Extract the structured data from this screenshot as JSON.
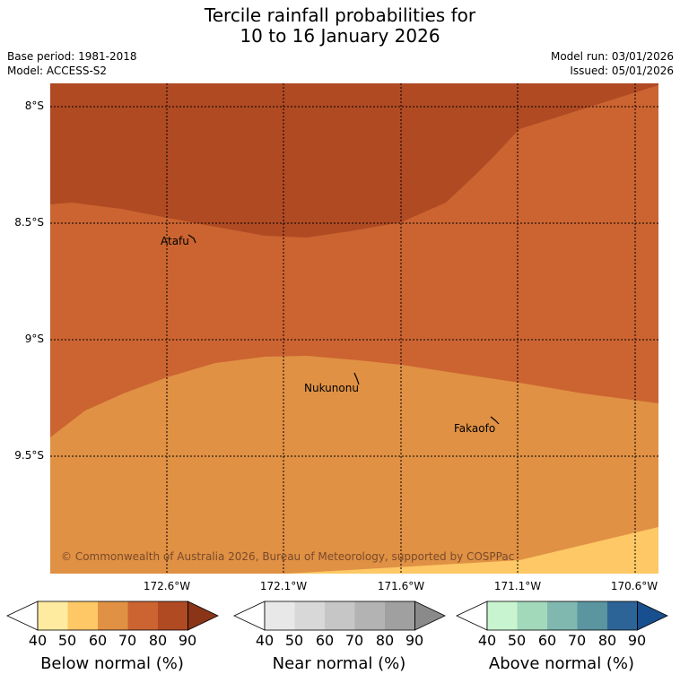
{
  "title": {
    "line1": "Tercile rainfall probabilities for",
    "line2": "10 to 16 January 2026"
  },
  "meta": {
    "base_period": "Base period: 1981-2018",
    "model": "Model: ACCESS-S2",
    "model_run": "Model run: 03/01/2026",
    "issued": "Issued: 05/01/2026"
  },
  "map": {
    "lat_labels": [
      "8°S",
      "8.5°S",
      "9°S",
      "9.5°S"
    ],
    "lon_labels": [
      "172.6°W",
      "172.1°W",
      "171.6°W",
      "171.1°W",
      "170.6°W"
    ],
    "places": [
      {
        "name": "Atafu"
      },
      {
        "name": "Nukunonu"
      },
      {
        "name": "Fakaofo"
      }
    ],
    "copyright": "© Commonwealth of Australia 2026, Bureau of Meteorology, supported by COSPPac",
    "zone_colors": {
      "below_80": "#b04a23",
      "below_70": "#cb6431",
      "below_60": "#e09144",
      "below_50": "#fdc865"
    }
  },
  "colorbars": [
    {
      "label": "Below normal (%)",
      "ticks": [
        "40",
        "50",
        "60",
        "70",
        "80",
        "90"
      ],
      "colors": [
        "#ffffff",
        "#feeb9f",
        "#fdc865",
        "#e09144",
        "#cb6431",
        "#b04a23",
        "#8a3418"
      ]
    },
    {
      "label": "Near normal (%)",
      "ticks": [
        "40",
        "50",
        "60",
        "70",
        "80",
        "90"
      ],
      "colors": [
        "#ffffff",
        "#e8e8e8",
        "#d8d8d8",
        "#c6c6c6",
        "#b3b3b3",
        "#a0a0a0",
        "#8a8a8a"
      ]
    },
    {
      "label": "Above normal (%)",
      "ticks": [
        "40",
        "50",
        "60",
        "70",
        "80",
        "90"
      ],
      "colors": [
        "#ffffff",
        "#c8f5cf",
        "#a3d9bb",
        "#80b8b0",
        "#5a95a0",
        "#2d6497",
        "#184f8e"
      ]
    }
  ]
}
